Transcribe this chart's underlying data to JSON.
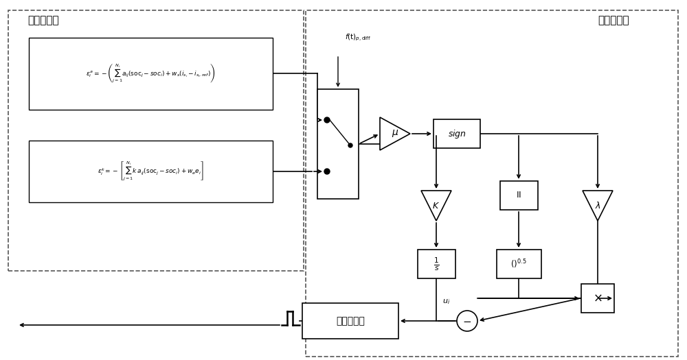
{
  "bg_color": "#ffffff",
  "label_left": "二级控制层",
  "label_right": "本地控制层",
  "eq1": "$\\varepsilon_i^a = -\\left(\\sum_{j=1}^{N_i} a_{ij}(\\mathrm{soc}_j - soc_i) + w_s(i_{s_i} - i_{s_i,ref})\\right)$",
  "eq2": "$\\varepsilon_i^k = -\\left[\\sum_{j=1}^{N_i} k\\,a_{ij}(\\mathrm{soc}_j - soc_i) + w_e e_i\\right]$",
  "f_label": "$f(\\mathrm{t})_{p,\\mathrm{diff}}$",
  "mu_label": "$\\mu$",
  "sign_label": "$sign$",
  "K_label": "$K$",
  "II_label": "$\\mathrm{II}$",
  "lambda_label": "$\\lambda$",
  "pow_label": "$()^{0.5}$",
  "mult_label": "$\\times$",
  "controller_label": "双环控制器",
  "u_label": "$u_i$"
}
